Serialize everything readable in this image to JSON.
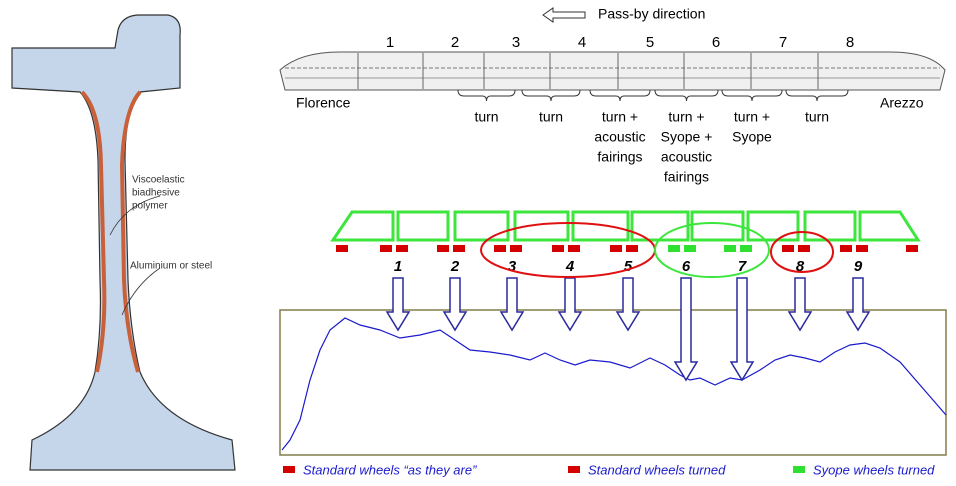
{
  "header": {
    "direction_label": "Pass-by direction"
  },
  "rail": {
    "labels": [
      {
        "lines": [
          "Viscoelastic",
          "biadhesive",
          "polymer"
        ]
      },
      {
        "lines": [
          "Aluminium or steel"
        ]
      }
    ]
  },
  "train": {
    "cars": [
      "1",
      "2",
      "3",
      "4",
      "5",
      "6",
      "7",
      "8"
    ],
    "left_city": "Florence",
    "right_city": "Arezzo",
    "treatments": [
      {
        "lines": [
          "turn"
        ]
      },
      {
        "lines": [
          "turn"
        ]
      },
      {
        "lines": [
          "turn +",
          "acoustic",
          "fairings"
        ]
      },
      {
        "lines": [
          "turn +",
          "Syope +",
          "acoustic",
          "fairings"
        ]
      },
      {
        "lines": [
          "turn +",
          "Syope"
        ]
      },
      {
        "lines": [
          "turn"
        ]
      }
    ]
  },
  "wheels": {
    "numbers": [
      "1",
      "2",
      "3",
      "4",
      "5",
      "6",
      "7",
      "8",
      "9"
    ]
  },
  "legend": [
    {
      "label": "Standard wheels “as they are”"
    },
    {
      "label": "Standard wheels turned"
    },
    {
      "label": "Syope wheels turned"
    }
  ]
}
